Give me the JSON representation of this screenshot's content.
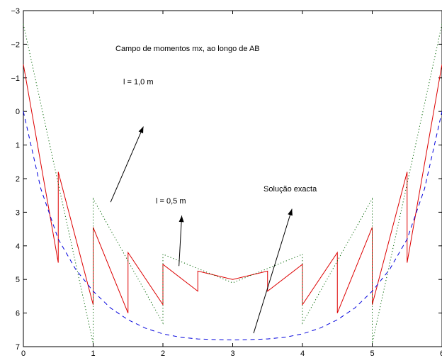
{
  "chart_data": {
    "type": "line",
    "title": "Campo de momentos mx, ao longo de AB",
    "xlabel": "",
    "ylabel": "",
    "xlim": [
      0,
      6
    ],
    "ylim": [
      -3,
      7
    ],
    "y_reversed": true,
    "grid": false,
    "xticks": [
      "0",
      "1",
      "2",
      "3",
      "4",
      "5",
      "6"
    ],
    "yticks": [
      "−3",
      "−2",
      "−1",
      "0",
      "1",
      "2",
      "3",
      "4",
      "5",
      "6",
      "7"
    ],
    "annotations": [
      {
        "text": "l = 1,0 m",
        "x": 1.9,
        "y": -1.0,
        "arrow_from": [
          1.25,
          2.7
        ],
        "arrow_to": [
          1.72,
          0.45
        ]
      },
      {
        "text": "l = 0,5 m",
        "x": 2.06,
        "y": 2.4,
        "arrow_from": [
          2.23,
          4.6
        ],
        "arrow_to": [
          2.27,
          3.1
        ]
      },
      {
        "text": "Solução exacta",
        "x": 3.5,
        "y": 1.9,
        "arrow_from": [
          3.3,
          6.6
        ],
        "arrow_to": [
          3.85,
          2.9
        ]
      }
    ],
    "series": [
      {
        "style": "solid",
        "color": "#dd0000",
        "x": [
          0,
          0.5,
          0.5,
          1,
          1,
          1.5,
          1.5,
          2,
          2,
          2.5,
          2.5,
          3,
          3.5,
          3.5,
          4,
          4,
          4.5,
          4.5,
          5,
          5,
          5.5,
          5.5,
          6
        ],
        "y": [
          -1.4,
          4.5,
          1.8,
          5.75,
          3.45,
          6.0,
          4.2,
          5.75,
          4.55,
          5.35,
          4.75,
          5.0,
          4.75,
          5.35,
          4.55,
          5.75,
          4.2,
          6.0,
          3.45,
          5.75,
          1.8,
          4.5,
          -1.4
        ]
      },
      {
        "style": "dotted",
        "color": "#006400",
        "x": [
          0,
          1,
          1,
          2,
          2,
          3,
          4,
          4,
          5,
          5,
          6
        ],
        "y": [
          -2.6,
          6.9,
          2.6,
          6.3,
          4.25,
          5.1,
          4.25,
          6.3,
          2.6,
          6.9,
          -2.6
        ]
      },
      {
        "style": "dashed",
        "color": "#0000dd",
        "x": [
          0,
          0.25,
          0.5,
          0.75,
          1,
          1.25,
          1.5,
          1.75,
          2,
          2.25,
          2.5,
          2.75,
          3,
          3.25,
          3.5,
          3.75,
          4,
          4.25,
          4.5,
          4.75,
          5,
          5.25,
          5.5,
          5.75,
          6
        ],
        "y": [
          0.0,
          2.3,
          3.8,
          4.7,
          5.35,
          5.85,
          6.2,
          6.45,
          6.62,
          6.72,
          6.77,
          6.79,
          6.8,
          6.79,
          6.77,
          6.72,
          6.62,
          6.45,
          6.2,
          5.85,
          5.35,
          4.7,
          3.8,
          2.3,
          0.0
        ]
      }
    ]
  }
}
